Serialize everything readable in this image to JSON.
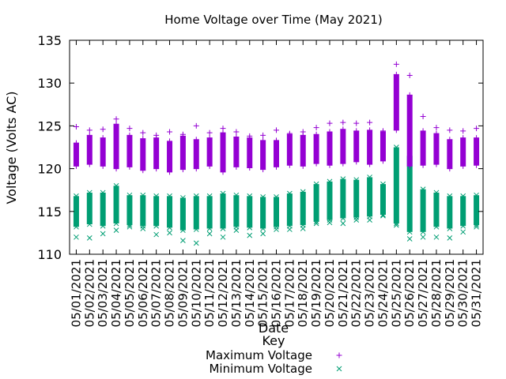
{
  "chart_data": {
    "type": "scatter",
    "title": "Home Voltage over Time (May 2021)",
    "xlabel": "Date",
    "ylabel": "Voltage (Volts AC)",
    "ylim": [
      110,
      135
    ],
    "yticks": [
      110,
      115,
      120,
      125,
      130,
      135
    ],
    "grid": false,
    "legend": {
      "title": "Key",
      "placement": "bottom-center"
    },
    "categories": [
      "05/01/2021",
      "05/02/2021",
      "05/03/2021",
      "05/04/2021",
      "05/05/2021",
      "05/06/2021",
      "05/07/2021",
      "05/08/2021",
      "05/09/2021",
      "05/10/2021",
      "05/11/2021",
      "05/12/2021",
      "05/13/2021",
      "05/14/2021",
      "05/15/2021",
      "05/16/2021",
      "05/17/2021",
      "05/18/2021",
      "05/19/2021",
      "05/20/2021",
      "05/21/2021",
      "05/22/2021",
      "05/23/2021",
      "05/24/2021",
      "05/25/2021",
      "05/26/2021",
      "05/27/2021",
      "05/28/2021",
      "05/29/2021",
      "05/30/2021",
      "05/31/2021"
    ],
    "series": [
      {
        "name": "Maximum Voltage",
        "marker": "+",
        "color": "#9400d3",
        "low": [
          120.3,
          120.5,
          120.3,
          120.0,
          120.2,
          119.8,
          120.0,
          119.6,
          119.9,
          120.0,
          120.3,
          119.6,
          120.2,
          120.1,
          119.9,
          120.2,
          120.4,
          120.3,
          120.6,
          120.4,
          120.6,
          120.8,
          120.5,
          120.9,
          124.5,
          120.3,
          120.4,
          120.5,
          120.0,
          120.3,
          120.4
        ],
        "high": [
          123.0,
          123.9,
          123.6,
          125.2,
          123.9,
          123.5,
          123.6,
          123.2,
          123.8,
          123.4,
          123.6,
          124.2,
          123.7,
          123.6,
          123.3,
          123.3,
          124.0,
          123.9,
          124.0,
          124.3,
          124.6,
          124.4,
          124.5,
          124.3,
          131.0,
          128.6,
          124.4,
          124.1,
          123.4,
          123.6,
          123.6
        ],
        "outliers_high": [
          124.9,
          124.5,
          124.6,
          125.8,
          124.7,
          124.2,
          123.9,
          124.3,
          124.0,
          125.0,
          124.2,
          124.7,
          124.3,
          123.8,
          123.9,
          124.5,
          124.1,
          124.3,
          124.8,
          125.3,
          125.4,
          125.3,
          125.4,
          124.4,
          132.2,
          130.9,
          126.1,
          124.8,
          124.5,
          124.4,
          124.7
        ]
      },
      {
        "name": "Minimum Voltage",
        "marker": "x",
        "color": "#009e73",
        "low": [
          113.2,
          113.5,
          113.3,
          113.6,
          113.4,
          113.3,
          113.3,
          113.1,
          112.8,
          112.9,
          113.0,
          113.0,
          113.2,
          113.1,
          113.0,
          113.2,
          113.3,
          113.4,
          113.8,
          114.0,
          114.2,
          114.3,
          114.4,
          114.6,
          113.6,
          112.6,
          112.6,
          113.2,
          113.0,
          113.3,
          113.4
        ],
        "high": [
          116.8,
          117.2,
          117.2,
          118.0,
          116.9,
          116.9,
          116.8,
          116.8,
          116.6,
          116.8,
          116.8,
          117.1,
          116.9,
          116.8,
          116.7,
          116.7,
          117.1,
          117.3,
          118.2,
          118.5,
          118.8,
          118.7,
          119.0,
          118.2,
          122.5,
          121.5,
          117.6,
          117.2,
          116.8,
          116.8,
          116.9
        ],
        "outliers_low": [
          112.0,
          111.9,
          112.4,
          112.8,
          113.2,
          113.0,
          112.3,
          112.5,
          111.6,
          111.3,
          112.4,
          112.0,
          112.8,
          112.2,
          112.4,
          112.9,
          112.9,
          113.0,
          113.6,
          113.7,
          113.6,
          114.0,
          114.0,
          114.5,
          113.4,
          111.8,
          112.0,
          112.0,
          111.9,
          112.6,
          113.2
        ]
      }
    ]
  }
}
